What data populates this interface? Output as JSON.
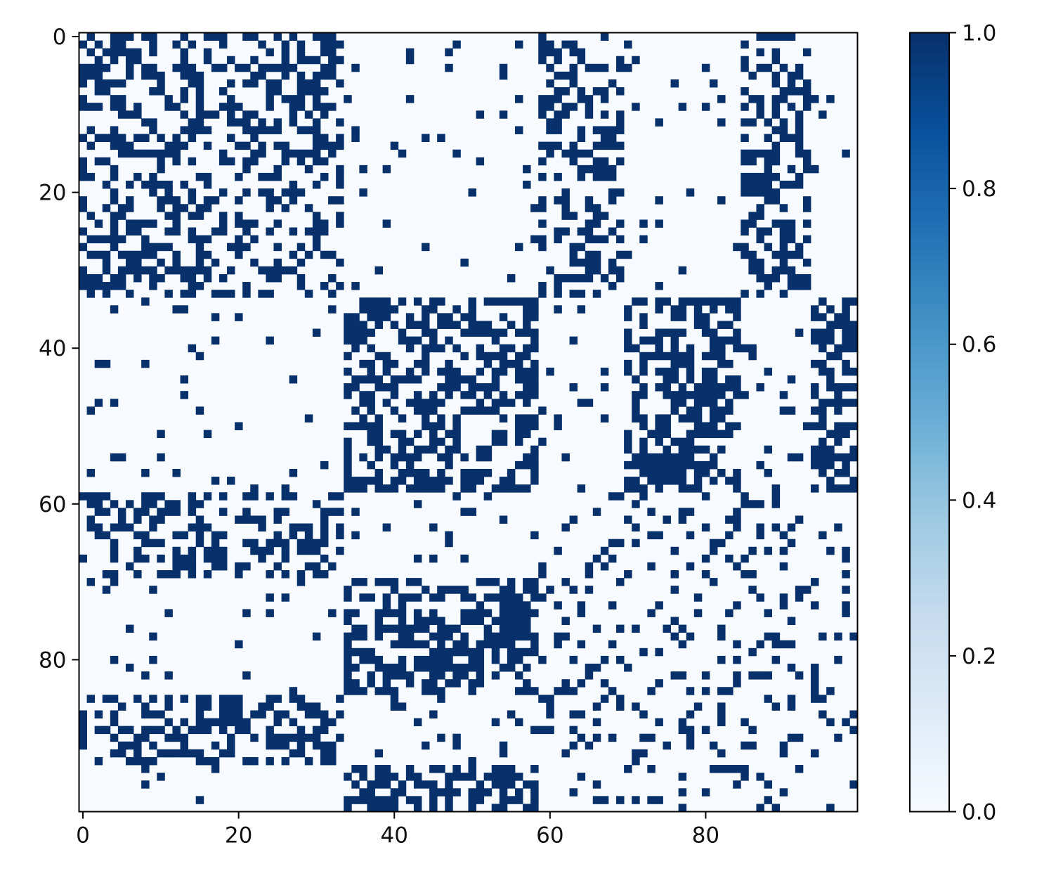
{
  "chart_data": {
    "type": "heatmap",
    "title": "",
    "xlabel": "",
    "ylabel": "",
    "xlim": [
      -0.5,
      99.5
    ],
    "ylim": [
      99.5,
      -0.5
    ],
    "x_ticks": [
      0,
      20,
      40,
      60,
      80
    ],
    "x_tick_labels": [
      "0",
      "20",
      "40",
      "60",
      "80"
    ],
    "y_ticks": [
      0,
      20,
      40,
      60,
      80
    ],
    "y_tick_labels": [
      "0",
      "20",
      "40",
      "60",
      "80"
    ],
    "grid": false,
    "colormap": {
      "name": "Blues",
      "low_color": "#f7fbff",
      "high_color": "#08306b",
      "stops": [
        "#f7fbff",
        "#deebf7",
        "#c6dbef",
        "#9ecae1",
        "#6baed6",
        "#4292c6",
        "#2171b5",
        "#08519c",
        "#08306b"
      ]
    },
    "colorbar": {
      "ticks": [
        0.0,
        0.2,
        0.4,
        0.6,
        0.8,
        1.0
      ],
      "tick_labels": [
        "0.0",
        "0.2",
        "0.4",
        "0.6",
        "0.8",
        "1.0"
      ],
      "range": [
        0.0,
        1.0
      ],
      "placement": "right"
    },
    "values_encoding": "binary 0/1 adjacency matrix, 100x100, stochastic block structure with 3 communities",
    "n_rows": 100,
    "n_cols": 100,
    "communities": [
      {
        "start": 0,
        "end": 33
      },
      {
        "start": 34,
        "end": 58
      },
      {
        "start": 59,
        "end": 99
      }
    ],
    "block_densities": {
      "within_community_0": 0.45,
      "within_community_1": 0.6,
      "within_community_2_tail_blocks": 0.45,
      "between_communities": 0.05
    }
  }
}
